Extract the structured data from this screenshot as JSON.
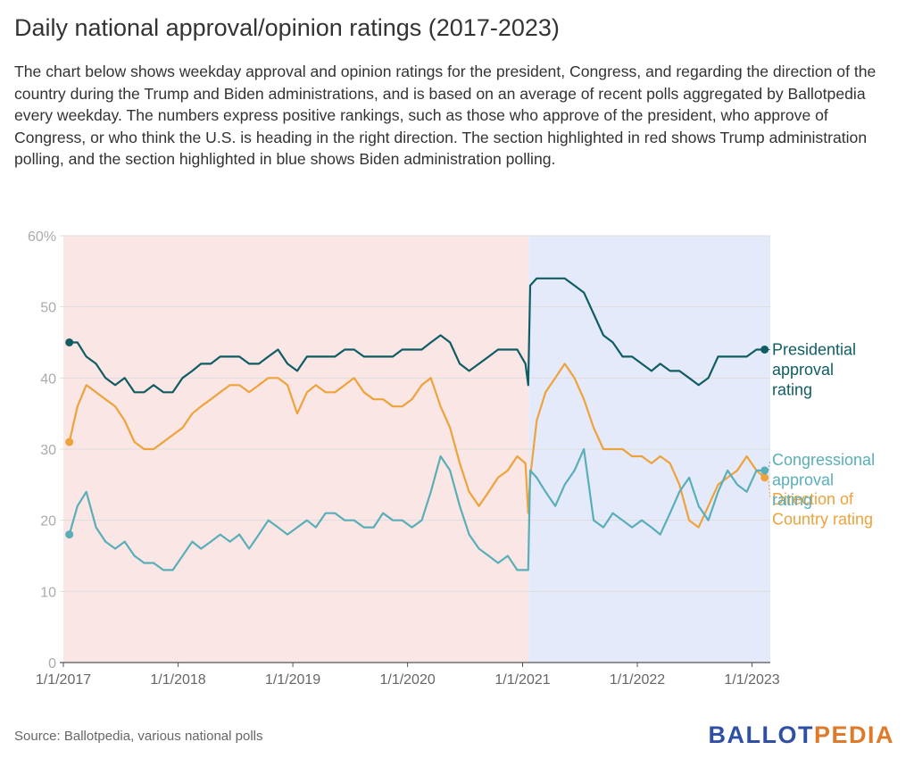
{
  "title": "Daily national approval/opinion ratings (2017-2023)",
  "description": "The chart below shows weekday approval and opinion ratings for the president, Congress, and regarding the direction of the country during the Trump and Biden administrations, and is based on an average of recent polls aggregated by Ballotpedia every weekday. The numbers express positive rankings, such as those who approve of the president, who approve of Congress, or who think the U.S. is heading in the right direction. The section highlighted in red shows Trump administration polling, and the section highlighted in blue shows Biden administration polling.",
  "source": "Source: Ballotpedia, various national polls",
  "logo": {
    "part1": "BALLOT",
    "part2": "PEDIA",
    "color1": "#2e4fa3",
    "color2": "#e07a2b"
  },
  "chart_data": {
    "type": "line",
    "x_type": "date",
    "x_ticks": [
      "1/1/2017",
      "1/1/2018",
      "1/1/2019",
      "1/1/2020",
      "1/1/2021",
      "1/1/2022",
      "1/1/2023"
    ],
    "xlim": [
      "2017-01-01",
      "2023-02-28"
    ],
    "ylim": [
      0,
      60
    ],
    "y_ticks": [
      0,
      10,
      20,
      30,
      40,
      50,
      60
    ],
    "y_tick_labels": [
      "0",
      "10",
      "20",
      "30",
      "40",
      "50",
      "60%"
    ],
    "grid": "horizontal",
    "bands": [
      {
        "from": "2017-01-01",
        "to": "2021-01-20",
        "color": "#fae6e5"
      },
      {
        "from": "2021-01-20",
        "to": "2023-02-28",
        "color": "#e5eafb"
      }
    ],
    "series": [
      {
        "name": "Presidential approval rating",
        "color": "#0f5d63",
        "label_lines": [
          "Presidential",
          "approval",
          "rating"
        ],
        "points": [
          [
            "2017-01-20",
            45
          ],
          [
            "2017-02-15",
            45
          ],
          [
            "2017-03-15",
            43
          ],
          [
            "2017-04-15",
            42
          ],
          [
            "2017-05-15",
            40
          ],
          [
            "2017-06-15",
            39
          ],
          [
            "2017-07-15",
            40
          ],
          [
            "2017-08-15",
            38
          ],
          [
            "2017-09-15",
            38
          ],
          [
            "2017-10-15",
            39
          ],
          [
            "2017-11-15",
            38
          ],
          [
            "2017-12-15",
            38
          ],
          [
            "2018-01-15",
            40
          ],
          [
            "2018-02-15",
            41
          ],
          [
            "2018-03-15",
            42
          ],
          [
            "2018-04-15",
            42
          ],
          [
            "2018-05-15",
            43
          ],
          [
            "2018-06-15",
            43
          ],
          [
            "2018-07-15",
            43
          ],
          [
            "2018-08-15",
            42
          ],
          [
            "2018-09-15",
            42
          ],
          [
            "2018-10-15",
            43
          ],
          [
            "2018-11-15",
            44
          ],
          [
            "2018-12-15",
            42
          ],
          [
            "2019-01-15",
            41
          ],
          [
            "2019-02-15",
            43
          ],
          [
            "2019-03-15",
            43
          ],
          [
            "2019-04-15",
            43
          ],
          [
            "2019-05-15",
            43
          ],
          [
            "2019-06-15",
            44
          ],
          [
            "2019-07-15",
            44
          ],
          [
            "2019-08-15",
            43
          ],
          [
            "2019-09-15",
            43
          ],
          [
            "2019-10-15",
            43
          ],
          [
            "2019-11-15",
            43
          ],
          [
            "2019-12-15",
            44
          ],
          [
            "2020-01-15",
            44
          ],
          [
            "2020-02-15",
            44
          ],
          [
            "2020-03-15",
            45
          ],
          [
            "2020-04-15",
            46
          ],
          [
            "2020-05-15",
            45
          ],
          [
            "2020-06-15",
            42
          ],
          [
            "2020-07-15",
            41
          ],
          [
            "2020-08-15",
            42
          ],
          [
            "2020-09-15",
            43
          ],
          [
            "2020-10-15",
            44
          ],
          [
            "2020-11-15",
            44
          ],
          [
            "2020-12-15",
            44
          ],
          [
            "2021-01-10",
            42
          ],
          [
            "2021-01-19",
            39
          ],
          [
            "2021-01-25",
            53
          ],
          [
            "2021-02-15",
            54
          ],
          [
            "2021-03-15",
            54
          ],
          [
            "2021-04-15",
            54
          ],
          [
            "2021-05-15",
            54
          ],
          [
            "2021-06-15",
            53
          ],
          [
            "2021-07-15",
            52
          ],
          [
            "2021-08-15",
            49
          ],
          [
            "2021-09-15",
            46
          ],
          [
            "2021-10-15",
            45
          ],
          [
            "2021-11-15",
            43
          ],
          [
            "2021-12-15",
            43
          ],
          [
            "2022-01-15",
            42
          ],
          [
            "2022-02-15",
            41
          ],
          [
            "2022-03-15",
            42
          ],
          [
            "2022-04-15",
            41
          ],
          [
            "2022-05-15",
            41
          ],
          [
            "2022-06-15",
            40
          ],
          [
            "2022-07-15",
            39
          ],
          [
            "2022-08-15",
            40
          ],
          [
            "2022-09-15",
            43
          ],
          [
            "2022-10-15",
            43
          ],
          [
            "2022-11-15",
            43
          ],
          [
            "2022-12-15",
            43
          ],
          [
            "2023-01-15",
            44
          ],
          [
            "2023-02-10",
            44
          ]
        ]
      },
      {
        "name": "Direction of Country rating",
        "color": "#eea23a",
        "label_lines": [
          "Direction of",
          "Country rating"
        ],
        "points": [
          [
            "2017-01-20",
            31
          ],
          [
            "2017-02-15",
            36
          ],
          [
            "2017-03-15",
            39
          ],
          [
            "2017-04-15",
            38
          ],
          [
            "2017-05-15",
            37
          ],
          [
            "2017-06-15",
            36
          ],
          [
            "2017-07-15",
            34
          ],
          [
            "2017-08-15",
            31
          ],
          [
            "2017-09-15",
            30
          ],
          [
            "2017-10-15",
            30
          ],
          [
            "2017-11-15",
            31
          ],
          [
            "2017-12-15",
            32
          ],
          [
            "2018-01-15",
            33
          ],
          [
            "2018-02-15",
            35
          ],
          [
            "2018-03-15",
            36
          ],
          [
            "2018-04-15",
            37
          ],
          [
            "2018-05-15",
            38
          ],
          [
            "2018-06-15",
            39
          ],
          [
            "2018-07-15",
            39
          ],
          [
            "2018-08-15",
            38
          ],
          [
            "2018-09-15",
            39
          ],
          [
            "2018-10-15",
            40
          ],
          [
            "2018-11-15",
            40
          ],
          [
            "2018-12-15",
            39
          ],
          [
            "2019-01-15",
            35
          ],
          [
            "2019-02-15",
            38
          ],
          [
            "2019-03-15",
            39
          ],
          [
            "2019-04-15",
            38
          ],
          [
            "2019-05-15",
            38
          ],
          [
            "2019-06-15",
            39
          ],
          [
            "2019-07-15",
            40
          ],
          [
            "2019-08-15",
            38
          ],
          [
            "2019-09-15",
            37
          ],
          [
            "2019-10-15",
            37
          ],
          [
            "2019-11-15",
            36
          ],
          [
            "2019-12-15",
            36
          ],
          [
            "2020-01-15",
            37
          ],
          [
            "2020-02-15",
            39
          ],
          [
            "2020-03-15",
            40
          ],
          [
            "2020-04-15",
            36
          ],
          [
            "2020-05-15",
            33
          ],
          [
            "2020-06-15",
            28
          ],
          [
            "2020-07-15",
            24
          ],
          [
            "2020-08-15",
            22
          ],
          [
            "2020-09-15",
            24
          ],
          [
            "2020-10-15",
            26
          ],
          [
            "2020-11-15",
            27
          ],
          [
            "2020-12-15",
            29
          ],
          [
            "2021-01-10",
            28
          ],
          [
            "2021-01-19",
            21
          ],
          [
            "2021-01-25",
            26
          ],
          [
            "2021-02-15",
            34
          ],
          [
            "2021-03-15",
            38
          ],
          [
            "2021-04-15",
            40
          ],
          [
            "2021-05-15",
            42
          ],
          [
            "2021-06-15",
            40
          ],
          [
            "2021-07-15",
            37
          ],
          [
            "2021-08-15",
            33
          ],
          [
            "2021-09-15",
            30
          ],
          [
            "2021-10-15",
            30
          ],
          [
            "2021-11-15",
            30
          ],
          [
            "2021-12-15",
            29
          ],
          [
            "2022-01-15",
            29
          ],
          [
            "2022-02-15",
            28
          ],
          [
            "2022-03-15",
            29
          ],
          [
            "2022-04-15",
            28
          ],
          [
            "2022-05-15",
            25
          ],
          [
            "2022-06-15",
            20
          ],
          [
            "2022-07-15",
            19
          ],
          [
            "2022-08-15",
            22
          ],
          [
            "2022-09-15",
            25
          ],
          [
            "2022-10-15",
            26
          ],
          [
            "2022-11-15",
            27
          ],
          [
            "2022-12-15",
            29
          ],
          [
            "2023-01-15",
            27
          ],
          [
            "2023-02-10",
            26
          ]
        ]
      },
      {
        "name": "Congressional approval rating",
        "color": "#5aaeb8",
        "label_lines": [
          "Congressional",
          "approval",
          "rating"
        ],
        "points": [
          [
            "2017-01-20",
            18
          ],
          [
            "2017-02-15",
            22
          ],
          [
            "2017-03-15",
            24
          ],
          [
            "2017-04-15",
            19
          ],
          [
            "2017-05-15",
            17
          ],
          [
            "2017-06-15",
            16
          ],
          [
            "2017-07-15",
            17
          ],
          [
            "2017-08-15",
            15
          ],
          [
            "2017-09-15",
            14
          ],
          [
            "2017-10-15",
            14
          ],
          [
            "2017-11-15",
            13
          ],
          [
            "2017-12-15",
            13
          ],
          [
            "2018-01-15",
            15
          ],
          [
            "2018-02-15",
            17
          ],
          [
            "2018-03-15",
            16
          ],
          [
            "2018-04-15",
            17
          ],
          [
            "2018-05-15",
            18
          ],
          [
            "2018-06-15",
            17
          ],
          [
            "2018-07-15",
            18
          ],
          [
            "2018-08-15",
            16
          ],
          [
            "2018-09-15",
            18
          ],
          [
            "2018-10-15",
            20
          ],
          [
            "2018-11-15",
            19
          ],
          [
            "2018-12-15",
            18
          ],
          [
            "2019-01-15",
            19
          ],
          [
            "2019-02-15",
            20
          ],
          [
            "2019-03-15",
            19
          ],
          [
            "2019-04-15",
            21
          ],
          [
            "2019-05-15",
            21
          ],
          [
            "2019-06-15",
            20
          ],
          [
            "2019-07-15",
            20
          ],
          [
            "2019-08-15",
            19
          ],
          [
            "2019-09-15",
            19
          ],
          [
            "2019-10-15",
            21
          ],
          [
            "2019-11-15",
            20
          ],
          [
            "2019-12-15",
            20
          ],
          [
            "2020-01-15",
            19
          ],
          [
            "2020-02-15",
            20
          ],
          [
            "2020-03-15",
            24
          ],
          [
            "2020-04-15",
            29
          ],
          [
            "2020-05-15",
            27
          ],
          [
            "2020-06-15",
            22
          ],
          [
            "2020-07-15",
            18
          ],
          [
            "2020-08-15",
            16
          ],
          [
            "2020-09-15",
            15
          ],
          [
            "2020-10-15",
            14
          ],
          [
            "2020-11-15",
            15
          ],
          [
            "2020-12-15",
            13
          ],
          [
            "2021-01-10",
            13
          ],
          [
            "2021-01-19",
            13
          ],
          [
            "2021-01-25",
            27
          ],
          [
            "2021-02-15",
            26
          ],
          [
            "2021-03-15",
            24
          ],
          [
            "2021-04-15",
            22
          ],
          [
            "2021-05-15",
            25
          ],
          [
            "2021-06-15",
            27
          ],
          [
            "2021-07-15",
            30
          ],
          [
            "2021-08-15",
            20
          ],
          [
            "2021-09-15",
            19
          ],
          [
            "2021-10-15",
            21
          ],
          [
            "2021-11-15",
            20
          ],
          [
            "2021-12-15",
            19
          ],
          [
            "2022-01-15",
            20
          ],
          [
            "2022-02-15",
            19
          ],
          [
            "2022-03-15",
            18
          ],
          [
            "2022-04-15",
            21
          ],
          [
            "2022-05-15",
            24
          ],
          [
            "2022-06-15",
            26
          ],
          [
            "2022-07-15",
            22
          ],
          [
            "2022-08-15",
            20
          ],
          [
            "2022-09-15",
            24
          ],
          [
            "2022-10-15",
            27
          ],
          [
            "2022-11-15",
            25
          ],
          [
            "2022-12-15",
            24
          ],
          [
            "2023-01-15",
            27
          ],
          [
            "2023-02-10",
            27
          ]
        ]
      }
    ]
  }
}
